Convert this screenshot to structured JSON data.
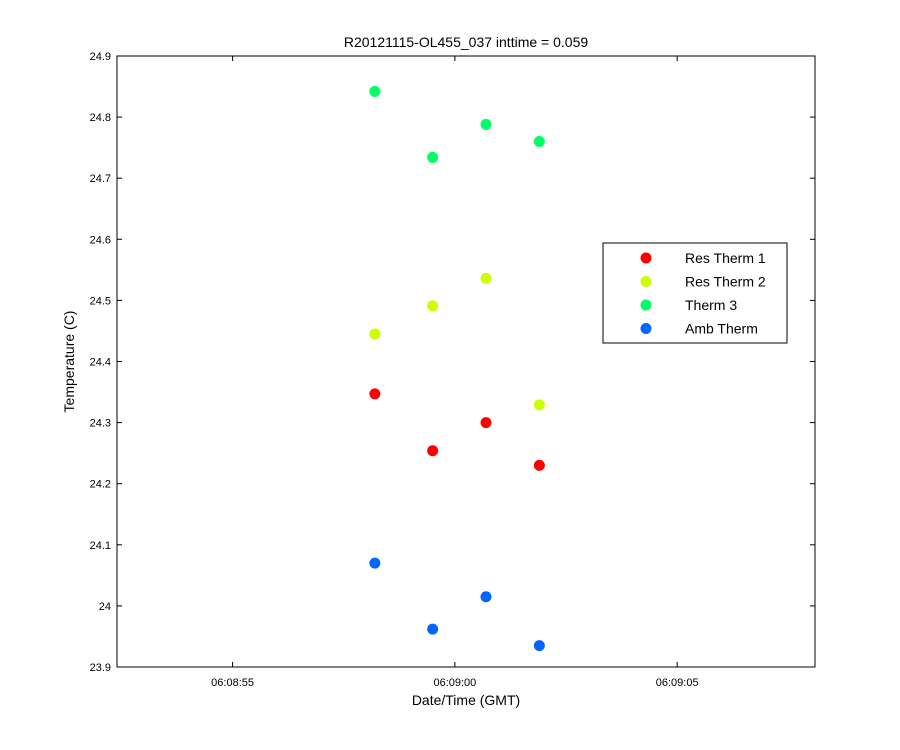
{
  "chart_data": {
    "type": "scatter",
    "title": "R20121115-OL455_037 inttime = 0.059",
    "xlabel": "Date/Time (GMT)",
    "ylabel": "Temperature (C)",
    "xlim": [
      "06:08:52.4",
      "06:09:08.1"
    ],
    "ylim": [
      23.9,
      24.9
    ],
    "x_ticks": [
      "06:08:55",
      "06:09:00",
      "06:09:05"
    ],
    "y_ticks": [
      "23.9",
      "24",
      "24.1",
      "24.2",
      "24.3",
      "24.4",
      "24.5",
      "24.6",
      "24.7",
      "24.8",
      "24.9"
    ],
    "x": [
      "06:08:58.2",
      "06:08:59.5",
      "06:09:00.7",
      "06:09:01.9"
    ],
    "series": [
      {
        "name": "Res Therm 1",
        "color": "#ff0000",
        "values": [
          24.347,
          24.254,
          24.3,
          24.23
        ]
      },
      {
        "name": "Res Therm 2",
        "color": "#ccff00",
        "values": [
          24.445,
          24.491,
          24.536,
          24.329
        ]
      },
      {
        "name": "Therm 3",
        "color": "#00ff66",
        "values": [
          24.842,
          24.734,
          24.788,
          24.76
        ]
      },
      {
        "name": "Amb Therm",
        "color": "#0066ff",
        "values": [
          24.07,
          23.962,
          24.015,
          23.935
        ]
      }
    ],
    "grid": false,
    "legend": "right"
  }
}
